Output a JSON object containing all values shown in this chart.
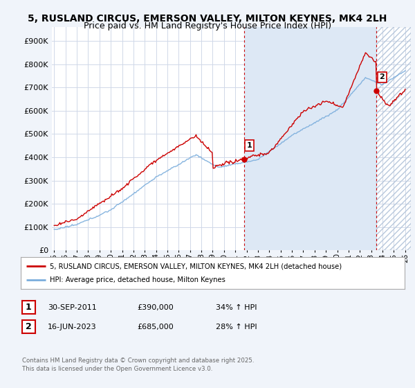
{
  "title_line1": "5, RUSLAND CIRCUS, EMERSON VALLEY, MILTON KEYNES, MK4 2LH",
  "title_line2": "Price paid vs. HM Land Registry's House Price Index (HPI)",
  "title_fontsize": 10,
  "subtitle_fontsize": 9,
  "ylabel_ticks": [
    "£0",
    "£100K",
    "£200K",
    "£300K",
    "£400K",
    "£500K",
    "£600K",
    "£700K",
    "£800K",
    "£900K"
  ],
  "ytick_values": [
    0,
    100000,
    200000,
    300000,
    400000,
    500000,
    600000,
    700000,
    800000,
    900000
  ],
  "ylim": [
    0,
    960000
  ],
  "xlim_start": 1994.8,
  "xlim_end": 2026.5,
  "background_color": "#f0f4fa",
  "plot_bg_color": "#ffffff",
  "grid_color": "#d0d8e8",
  "red_color": "#cc0000",
  "blue_color": "#7aaddc",
  "shade_color": "#dde8f5",
  "marker1_x": 2011.75,
  "marker1_y": 390000,
  "marker2_x": 2023.46,
  "marker2_y": 685000,
  "legend_label_red": "5, RUSLAND CIRCUS, EMERSON VALLEY, MILTON KEYNES, MK4 2LH (detached house)",
  "legend_label_blue": "HPI: Average price, detached house, Milton Keynes",
  "table_row1": [
    "1",
    "30-SEP-2011",
    "£390,000",
    "34% ↑ HPI"
  ],
  "table_row2": [
    "2",
    "16-JUN-2023",
    "£685,000",
    "28% ↑ HPI"
  ],
  "footnote": "Contains HM Land Registry data © Crown copyright and database right 2025.\nThis data is licensed under the Open Government Licence v3.0."
}
